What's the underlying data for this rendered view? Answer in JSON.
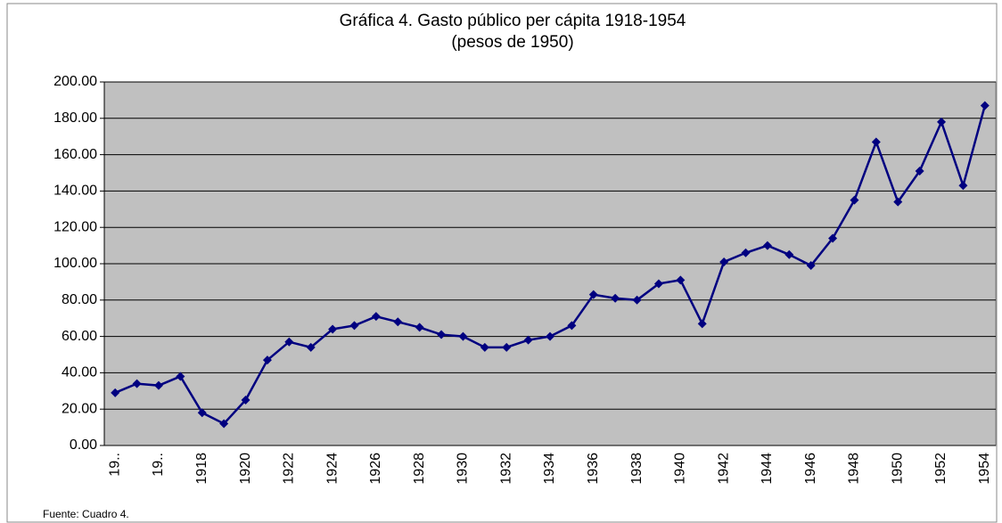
{
  "chart_data": {
    "type": "line",
    "title": "Gráfica 4. Gasto público per cápita 1918-1954",
    "subtitle": "(pesos de 1950)",
    "source": "Fuente: Cuadro 4.",
    "categories": [
      "19..",
      null,
      "19..",
      null,
      "1918",
      null,
      "1920",
      null,
      "1922",
      null,
      "1924",
      null,
      "1926",
      null,
      "1928",
      null,
      "1930",
      null,
      "1932",
      null,
      "1934",
      null,
      "1936",
      null,
      "1938",
      null,
      "1940",
      null,
      "1942",
      null,
      "1944",
      null,
      "1946",
      null,
      "1948",
      null,
      "1950",
      null,
      "1952",
      null,
      "1954"
    ],
    "values": [
      29,
      34,
      33,
      38,
      18,
      12,
      25,
      47,
      57,
      54,
      64,
      66,
      71,
      68,
      65,
      61,
      60,
      54,
      54,
      58,
      60,
      66,
      83,
      81,
      80,
      89,
      91,
      67,
      101,
      106,
      110,
      105,
      99,
      114,
      135,
      167,
      134,
      151,
      178,
      143,
      187
    ],
    "color": "#000080",
    "ylim": [
      0,
      200
    ],
    "yticks": [
      {
        "value": 0,
        "label": "0.00"
      },
      {
        "value": 20,
        "label": "20.00"
      },
      {
        "value": 40,
        "label": "40.00"
      },
      {
        "value": 60,
        "label": "60.00"
      },
      {
        "value": 80,
        "label": "80.00"
      },
      {
        "value": 100,
        "label": "100.00"
      },
      {
        "value": 120,
        "label": "120.00"
      },
      {
        "value": 140,
        "label": "140.00"
      },
      {
        "value": 160,
        "label": "160.00"
      },
      {
        "value": 180,
        "label": "180.00"
      },
      {
        "value": 200,
        "label": "200.00"
      }
    ],
    "grid": true
  }
}
